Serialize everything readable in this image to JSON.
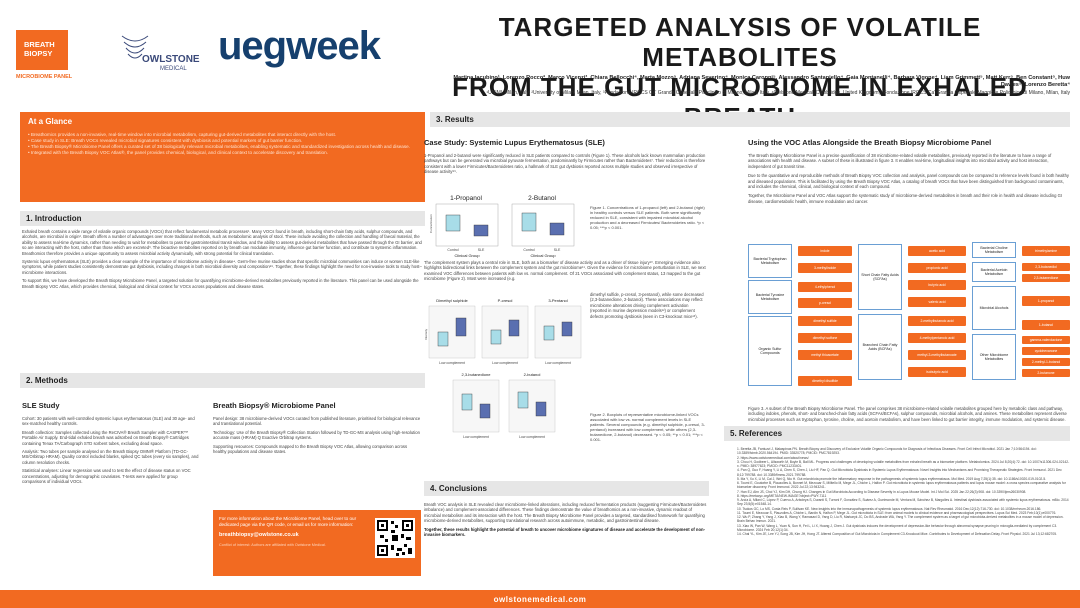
{
  "header": {
    "logo_breath": "BREATH",
    "logo_biopsy": "BIOPSY",
    "logo_panel": "MICROBIOME PANEL",
    "logo_owlstone": "OWLSTONE",
    "logo_medical": "MEDICAL",
    "logo_ueg": "ueg",
    "logo_week": "week",
    "title_line1": "TARGETED ANALYSIS OF VOLATILE METABOLITES",
    "title_line2": "FROM THE GUT MICROBIOME IN EXHALED BREATH",
    "authors": "Martina Iacubino¹, Lorenzo Rocco², Marco Vicenzi³, Chiara Bellocchi⁴, Marta Mozzo⁵, Adriana Severino⁴, Monica Caronni⁵, Alessandro Santaniello⁴, Gaia Montanelli⁴, Barbara Vigone⁴, Liam Grimmett⁵, Matt Kerr⁵, Ben Constant⁵, Huw Davies⁵, Lorenzo Beretta⁴",
    "affiliations": "¹UNIMI, Milan, Italy, ²University of Milan, Milan, Italy, ³Fondazione IRCCS Ca' Granda Ospedale Policlinico di Milano, Milan, Italy, ⁴Owlstone Medical, Cambridge, United Kingdom, ⁵Fondazione IRCCS Ca' Granda Ospedale Maggiore Policlinico di Milano, Milan, Italy"
  },
  "glance": {
    "heading": "At a Glance",
    "items": [
      "Breathomics provides a non-invasive, real-time window into microbial metabolism, capturing gut-derived metabolites that interact directly with the host.",
      "Case study in SLE: Breath VOCs revealed microbial signatures consistent with dysbiosis and potential markers of gut barrier function.",
      "The Breath Biopsy® Microbiome Panel offers a curated set of 38 biologically relevant microbial metabolites, enabling systematic and standardized investigation across health and disease.",
      "Integrated with the Breath Biopsy VOC Atlas®, the panel provides chemical, biological, and clinical context to accelerate discovery and translation."
    ]
  },
  "intro": {
    "heading": "1. Introduction",
    "p1": "Exhaled breath contains a wide range of volatile organic compounds (VOCs) that reflect fundamental metabolic processes¹. Many VOCs found in breath, including short-chain fatty acids, sulphur compounds, and alcohols, are microbial in origin². Breath offers a number of advantages over more traditional methods, such as metabolomic analysis of stool. These include avoiding the collection and handling of faecal material, the ability to assess real-time dynamics, rather than needing to wait for metabolites to pass the gastrointestinal transit window, and the ability to assess gut-derived metabolites that have passed through the GI barrier, and so are interacting with the host, rather than those which are excreted³. The bioactive metabolites reported on by breath can modulate immunity, influence gut barrier function, and contribute to systemic inflammation. Breathomics therefore provides a unique opportunity to assess microbial activity dynamically, with strong potential for clinical translation.",
    "p2": "Systemic lupus erythematosus (SLE) provides a clear example of the importance of microbiome activity in disease⁴. Germ-free murine studies show that specific microbial communities can induce or worsen SLE-like symptoms, while patient studies consistently demonstrate gut dysbiosis, including changes in both microbial diversity and composition⁵⁶. Together, these findings highlight the need for non-invasive tools to study host–microbiome interactions.",
    "p3": "To support this, we have developed the Breath Biopsy Microbiome Panel, a targeted solution for quantifying microbiome-derived metabolites previously reported in the literature. This panel can be used alongside the Breath Biopsy VOC Atlas, which provides chemical, biological and clinical context for VOCs across populations and disease states."
  },
  "methods": {
    "heading": "2. Methods",
    "sle_heading": "SLE Study",
    "sle_paras": [
      "Cohort: 30 patients with well-controlled systemic lupus erythematosus (SLE) and 30 age- and sex-matched healthy controls.",
      "Breath collection: Samples collected using the ReCIVA® Breath Sampler with CASPER™ Portable Air Supply. End-tidal exhaled breath was adsorbed on Breath Biopsy® Cartridges containing Tenax TA/Carbograph STD sorbent tubes, excluding dead space.",
      "Analysis: Two tubes per sample analysed on the Breath Biopsy OMNI® Platform (TD-GC-MS/Orbitrap HRAM). Quality control included blanks, spiked QC tubes (every six samples), and column resolution checks.",
      "Statistical analyses: Linear regression was used to test the effect of disease status on VOC concentrations, adjusting for demographic covariates. T-tests were applied for group comparisons of individual VOCs."
    ],
    "panel_heading": "Breath Biopsy® Microbiome Panel",
    "panel_paras": [
      "Panel design: 38 microbiome-derived VOCs curated from published literature, prioritised for biological relevance and translational potential.",
      "Technology: Use of the Breath Biopsy® Collection Station followed by TD-GC-MS analysis using high-resolution accurate mass (HRAM) Q Exactive Orbitrap systems.",
      "Supporting resources: Compounds mapped to the Breath Biopsy VOC Atlas, allowing comparison across healthy populations and disease states."
    ],
    "contact_text": "For more information about the Microbiome Panel, head over to our dedicated page via the QR code, or email us for more information:",
    "contact_email": "breathbiopsy@owlstone.co.uk",
    "conflict": "Conflict of interest: Authors are affiliated with Owlstone Medical."
  },
  "results": {
    "heading": "3. Results",
    "case_heading": "Case Study: Systemic Lupus Erythematosus (SLE)",
    "case_p1": "1-Propanol and 2-butanol were significantly reduced in SLE patients compared to controls (Figure 1). These alcohols lack known mammalian production pathways but can be generated via microbial pyruvate fermentation, predominantly by Firmicutes rather than Bacteroidetes⁷. Their reduction is therefore consistent with a lower Firmicutes/Bacteroidetes ratio, a hallmark of SLE gut dysbiosis reported across multiple studies and observed irrespective of disease activity⁸⁹.",
    "fig1_title_a": "1-Propanol",
    "fig1_title_b": "2-Butanol",
    "fig1_ylabel": "Concentration",
    "fig1_xlabel": "Clinical Group",
    "fig1_cat_a": "Control",
    "fig1_cat_b": "SLE",
    "fig1_caption": "Figure 1. Concentrations of 1-propanol (left) and 2-butanol (right) in healthy controls versus SLE patients. Both were significantly reduced in SLE, consistent with impaired microbial alcohol production and a decreased Firmicutes/ Bacteroidetes ratio. *p < 0.05; ***p < 0.001.",
    "case_p2a": "The complement system plays a central role in SLE, both as a biomarker of disease activity and as a driver of tissue injury¹⁰. Emerging evidence also highlights bidirectional links between the complement system and the gut microbiome¹¹. Given the evidence for microbiome perturbation in SLE, we next examined VOC differences between patients with low vs. normal complement. Of 21 VOCs associated with complement status, 13 mapped to the gut microbiome (Figure 2). Most were increased (e.g.",
    "case_p2b": "dimethyl sulfide, p-cresol, 3-pentanol), while some decreased (2,3-butanedione, 2-butanol). These associations may reflect microbiome alterations driving complement activation (reported in murine depression models¹²) or complement defects promoting dysbiosis (seen in C3-knockout mice¹³).",
    "fig2_titles": [
      "Dimethyl sulphide",
      "P-cresol",
      "3-Pentanol",
      "2,3-butanedione",
      "2-butanol"
    ],
    "fig2_xlabel": "Low complement",
    "fig2_ylabel": "Intensity",
    "fig2_caption": "Figure 2. Boxplots of representative microbiome-linked VOCs associated with low vs. normal complement levels in SLE patients. Several compounds (e.g. dimethyl sulphide, p-cresol, 3-pentanol) increased with low complement, while others (2,3-butanedione, 2-butanol) decreased. *p < 0.05; **p < 0.01; ***p < 0.001.",
    "atlas_heading": "Using the VOC Atlas Alongside the Breath Biopsy Microbiome Panel",
    "atlas_p1": "The Breath Biopsy Microbiome Panel is a precise quantification of 38 microbiome-related volatile metabolites, previously reported in the literature to have a range of associations with health and disease. A subset of these is illustrated in figure 3. It enables real-time, longitudinal insights into microbial activity and host interaction, independent of gut transit time.",
    "atlas_p2": "Due to the quantitative and reproducible methods of Breath Biopsy VOC collection and analysis, panel compounds can be compared to reference levels found in both healthy and diseased populations. This is facilitated by using the Breath Biopsy VOC Atlas, a catalog of breath VOCs that have been distinguished from background contaminants, and includes the chemical, clinical, and biological context of each compound.",
    "atlas_p3": "Together, the Microbiome Panel and VOC Atlas support the systematic study of microbiome-derived metabolites in breath and their role in health and disease including GI disease, cardiometabolic health, immune modulation and cancer.",
    "fig3_caption": "Figure 3. A subset of the Breath Biopsy Microbiome Panel. The panel comprises 38 microbiome-related volatile metabolites grouped here by metabolic class and pathway, including indoles, phenols, short- and branched-chain fatty acids (SCFAs/BCFAs), sulphur compounds, microbial alcohols, and amines. These metabolites represent diverse microbial processes such as tryptophan, tyrosine, choline, and acetoin metabolism, and have been linked to gut barrier integrity, immune modulation, and systemic disease."
  },
  "fig3": {
    "cat_trp": "Bacterial Tryptophan Metabolism",
    "trp": [
      "indole",
      "3-methylindole"
    ],
    "cat_tyr": "Bacterial Tyrosine Metabolism",
    "tyr": [
      "4-ethylphenol",
      "p-cresol"
    ],
    "cat_sulfur": "Organic Sulfur Compounds",
    "sulfur": [
      "dimethyl sulfide",
      "dimethyl sulfone",
      "methyl thioacetate",
      "dimethyl disulfide"
    ],
    "cat_scfa": "Short Chain Fatty Acids (SCFAs)",
    "scfa": [
      "acetic acid",
      "propionic acid",
      "butyric acid",
      "valeric acid"
    ],
    "cat_bcfa": "Branched Chain Fatty Acids (BCFAs)",
    "bcfa": [
      "2-methylbutanoic acid",
      "4-methylpentanoic acid",
      "methyl-3-methylbutanoate",
      "isobutyric acid"
    ],
    "cat_choline": "Bacterial Choline Metabolism",
    "choline": [
      "trimethylamine"
    ],
    "cat_acetoin": "Bacterial Acetoin Metabolism",
    "acetoin": [
      "2,3-butanediol",
      "2,3-butanedione"
    ],
    "cat_alcohols": "Microbial Alcohols",
    "alcohols": [
      "1-propanol",
      "1-butanol"
    ],
    "cat_other": "Other Microbiome Metabolites",
    "other": [
      "gamma-valerolactone",
      "cyclohexanone",
      "2-methyl-1-butanol",
      "2-butanone"
    ]
  },
  "conclusions": {
    "heading": "4. Conclusions",
    "p1": "Breath VOC analysis in SLE revealed clear microbiome-linked alterations, including reduced fermentation products (suggesting Firmicutes/Bacteroidetes imbalance) and complement-associated differences. These findings demonstrate the value of breathomics as a non-invasive, dynamic readout of microbial metabolism and its interaction with the host. The Breath Biopsy Microbiome Panel provides a targeted, standardised framework for quantifying microbiome-derived metabolites, supporting translational research across autoimmune, metabolic, and gastrointestinal disease.",
    "p2": "Together, these results highlight the potential of breath to uncover microbiome signatures of disease and accelerate the development of non-invasive biomarkers."
  },
  "references": {
    "heading": "5. References",
    "items": [
      "1. Beretta JB, Fantuzzi J, Malaspinas PN. Breath Biopsy and Discovery of Exclusive Volatile Organic Compounds for Diagnosis of Infectious Diseases. Front Cell Infect Microbiol. 2021 Jan 7;10:564194. doi: 10.3389/fcimb.2020.564194. PMID: 33520778; PMCID: PMC7819253.",
      "2. https://www.owlstonemedical.com/about/news/",
      "3. Chou H, Godbeer L, Allsworth M, Boyle B, Ball ML. Progress and challenges of developing volatile metabolites from exhaled breath as a biomarker platform. Metabolomics. 2024 Jul 8;20(4):72. doi: 10.1007/s11306-024-02142-x. PMID: 38977623; PMCID: PMC11233401.",
      "4. Pan Q, Guo F, Huang Y, Li A, Chen S, Chen J, Liu HF, Pan Q. Gut Microbiota Dysbiosis in Systemic Lupus Erythematosus: Novel Insights into Mechanisms and Promising Therapeutic Strategies. Front Immunol. 2021 Dec 8;12:799788. doi: 10.3389/fimmu.2021.799788.",
      "5. Ma Y, Xu X, Li M, Cai J, Wei Q, Niu H. Gut microbiota promote the inflammatory response in the pathogenesis of systemic lupus erythematosus. Mol Med. 2019 Aug 7;25(1):35. doi: 10.1186/s10020-019-0102-5.",
      "6. Toumi E, Goutorbe B, Plauzolles A, Bonnet M, Mezouar S, Militello M, Mege JL, Chiche L, Halfon P. Gut microbiota in systemic lupus erythematosus patients and lupus mouse model: a cross species comparative analysis for biomarker discovery. Front Immunol. 2022 Jul 22;13:943241.",
      "7. Han EJ, Ahn JS, Choi YJ, Kim DH, Chung HJ. Changes in Gut Microbiota According to Disease Severity in a Lupus Mouse Model. Int J Mol Sci. 2025 Jan 22;26(3):908. doi: 10.3390/ijms26030908.",
      "8. https://metacyc.org/META/NEW-IMAGE?object=PWY-7111",
      "9. Arcía A, Milani C, López P, Cuervo A, Arboleya S, Duranti S, Turroni F, González S, Suárez A, Gueimonde M, Ventura M, Sánchez B, Margolles A. Intestinal dysbiosis associated with systemic lupus erythematosus. mBio. 2014 Sep 23;5(5):e01548-14.",
      "10. Tsokos GC, Lo MS, Costa Reis P, Sullivan KE. New insights into the immunopathogenesis of systemic lupus erythematosus. Nat Rev Rheumatol. 2016 Dec;12(12):716-730. doi: 10.1038/nrrheum.2016.186.",
      "11. Toumi E, Mezouar S, Plauzolles A, Chiche L, Bardin N, Halfon P, Mege JL. Gut microbiota in SLE: from animal models to clinical evidence and pharmacological perspectives. Lupus Sci Med. 2023 Feb;10(1):e000776.",
      "12. Wu P, Zhang Y, Yang J, Xiao B, Wang Y, Ramasaxi D, Yang D, Liu R, Markaryk JC, Do BS, Andrade WA, Yang Y. The complement system as a target of gut microbiota-derived metabolites in a mouse model of depression. Brain Behav Immun. 2021.",
      "13. Xiao W, Pan W, Wang L, Yuan N, Sun H, Fei L, Li X, Huang J, Chen J. Gut dysbiosis induces the development of depression-like behavior through abnormal synapse pruning in microglia-mediated by complement C3. Microbiome. 2024 Feb 20;12(1):34.",
      "14. Chai YL, Kim JE, Lee YJ, Song JB, Kim JH, Hong JT. Altered Composition of Gut Microbiota in Complement C3-Knockout Mice. Contributes to Development of Defecation Delay. Front Physiol. 2021 Jul 13;12:682705."
    ]
  },
  "footer": {
    "url": "owlstonemedical.com"
  }
}
